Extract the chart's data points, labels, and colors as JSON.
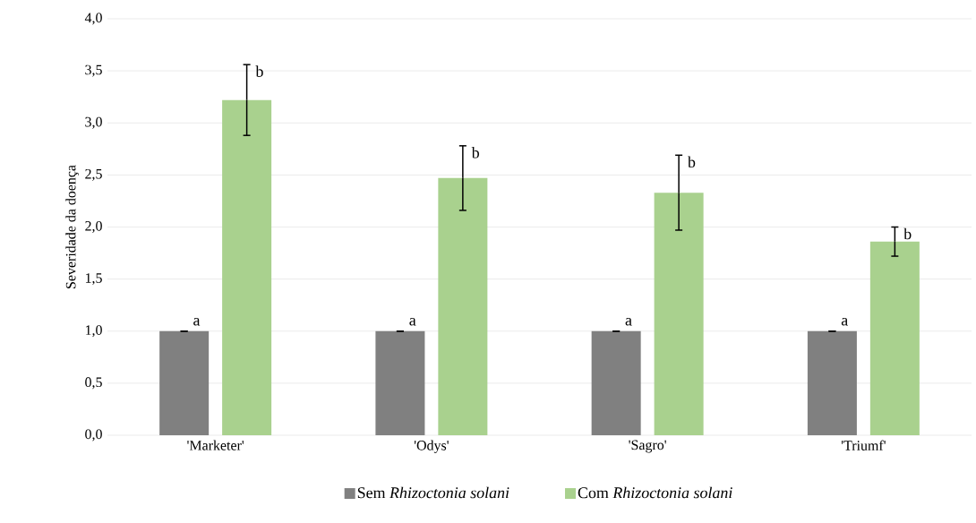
{
  "chart_data": {
    "type": "bar",
    "ylabel": "Severidade da doença",
    "categories": [
      "'Marketer'",
      "'Odys'",
      "'Sagro'",
      "'Triumf'"
    ],
    "series": [
      {
        "name": "Sem *Rhizoctonia solani*",
        "color": "#808080",
        "values": [
          1.0,
          1.0,
          1.0,
          1.0
        ],
        "errors": [
          0,
          0,
          0,
          0
        ]
      },
      {
        "name": "Com *Rhizoctonia solani*",
        "color": "#a9d18e",
        "values": [
          3.22,
          2.47,
          2.33,
          1.86
        ],
        "errors": [
          0.34,
          0.31,
          0.36,
          0.14
        ]
      }
    ],
    "ylim": [
      0,
      4
    ],
    "yticks": [
      {
        "value": 0,
        "label": "0,0"
      },
      {
        "value": 0.5,
        "label": "0,5"
      },
      {
        "value": 1,
        "label": "1,0"
      },
      {
        "value": 1.5,
        "label": "1,5"
      },
      {
        "value": 2,
        "label": "2,0"
      },
      {
        "value": 2.5,
        "label": "2,5"
      },
      {
        "value": 3,
        "label": "3,0"
      },
      {
        "value": 3.5,
        "label": "3,5"
      },
      {
        "value": 4,
        "label": "4,0"
      }
    ],
    "grid": "y",
    "legend": "bottom",
    "annotations": [
      "a",
      "b",
      "a",
      "b",
      "a",
      "b",
      "a",
      "b"
    ]
  }
}
